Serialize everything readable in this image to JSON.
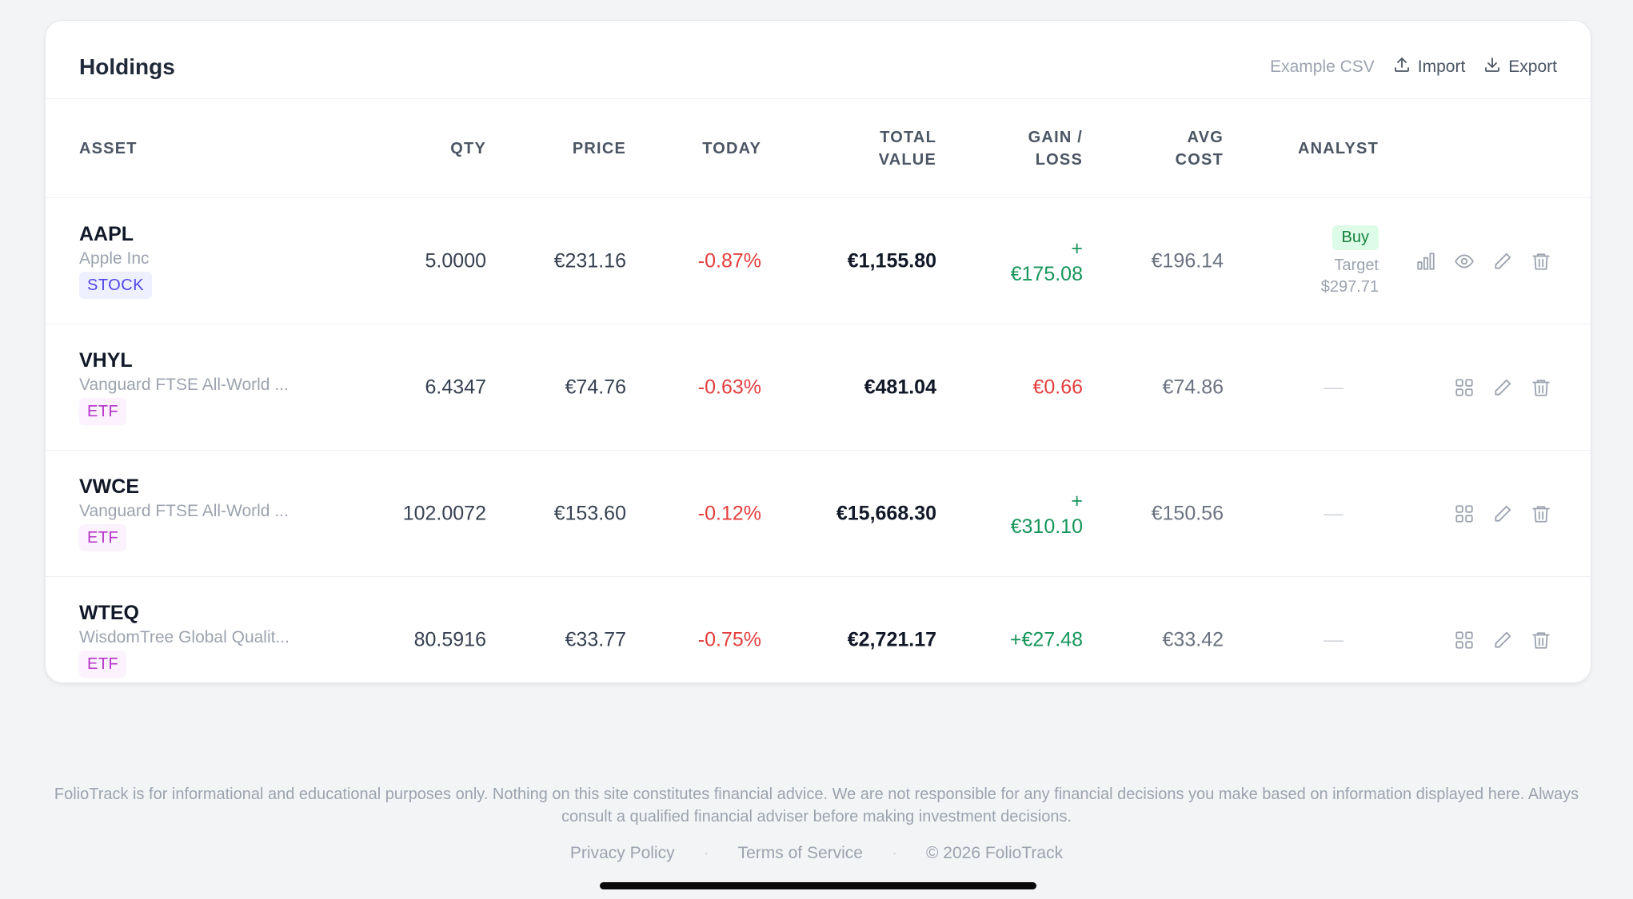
{
  "card": {
    "title": "Holdings",
    "actions": {
      "example_csv": "Example CSV",
      "import": "Import",
      "export": "Export"
    }
  },
  "columns": {
    "asset": "ASSET",
    "qty": "QTY",
    "price": "PRICE",
    "today": "TODAY",
    "total_value_1": "TOTAL",
    "total_value_2": "VALUE",
    "gain_1": "GAIN /",
    "gain_2": "LOSS",
    "avg_1": "AVG",
    "avg_2": "COST",
    "analyst": "ANALYST"
  },
  "holdings": [
    {
      "symbol": "AAPL",
      "name": "Apple Inc",
      "type": "STOCK",
      "qty": "5.0000",
      "price": "€231.16",
      "today": "-0.87%",
      "total": "€1,155.80",
      "gain_1": "+",
      "gain_2": "€175.08",
      "avg_cost": "€196.14",
      "analyst": {
        "rating": "Buy",
        "target_label": "Target",
        "target_value": "$297.71"
      }
    },
    {
      "symbol": "VHYL",
      "name": "Vanguard FTSE All-World ...",
      "type": "ETF",
      "qty": "6.4347",
      "price": "€74.76",
      "today": "-0.63%",
      "total": "€481.04",
      "gain": "€0.66",
      "avg_cost": "€74.86",
      "analyst": "—"
    },
    {
      "symbol": "VWCE",
      "name": "Vanguard FTSE All-World ...",
      "type": "ETF",
      "qty": "102.0072",
      "price": "€153.60",
      "today": "-0.12%",
      "total": "€15,668.30",
      "gain_1": "+",
      "gain_2": "€310.10",
      "avg_cost": "€150.56",
      "analyst": "—"
    },
    {
      "symbol": "WTEQ",
      "name": "WisdomTree Global Qualit...",
      "type": "ETF",
      "qty": "80.5916",
      "price": "€33.77",
      "today": "-0.75%",
      "total": "€2,721.17",
      "gain": "+€27.48",
      "avg_cost": "€33.42",
      "analyst": "—"
    }
  ],
  "footer": {
    "disclaimer": "FolioTrack is for informational and educational purposes only. Nothing on this site constitutes financial advice. We are not responsible for any financial decisions you make based on information displayed here. Always consult a qualified financial adviser before making investment decisions.",
    "privacy": "Privacy Policy",
    "terms": "Terms of Service",
    "copyright": "© 2026 FolioTrack",
    "separator": "·"
  },
  "colors": {
    "negative": "#e53e3e",
    "positive": "#16955a",
    "stock_badge": "#4f46e5",
    "etf_badge": "#b534c9"
  }
}
